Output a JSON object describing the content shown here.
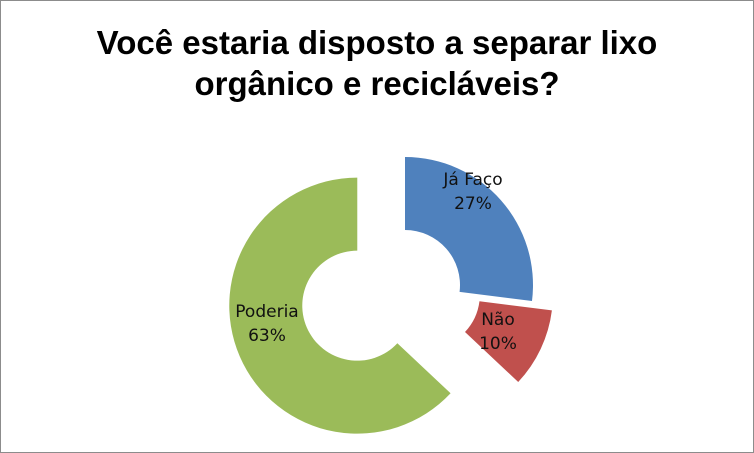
{
  "chart_data": {
    "type": "pie",
    "variant": "doughnut-exploded",
    "title_lines": [
      "Você estaria disposto a separar lixo",
      "orgânico e recicláveis?"
    ],
    "slices": [
      {
        "label": "Já Faço",
        "percent_label": "27%",
        "value": 27,
        "color": "#4f81bd"
      },
      {
        "label": "Não",
        "percent_label": "10%",
        "value": 10,
        "color": "#c0504d"
      },
      {
        "label": "Poderia",
        "percent_label": "63%",
        "value": 63,
        "color": "#9bbb59"
      }
    ],
    "legend": "none"
  }
}
